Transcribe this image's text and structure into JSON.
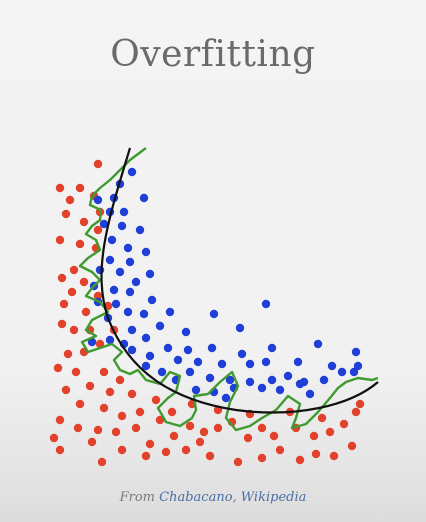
{
  "title": "Overfitting",
  "credit": {
    "prefix": "From ",
    "author": "Chabacano",
    "separator": ", ",
    "source": "Wikipedia"
  },
  "colors": {
    "class_a": "#e2412b",
    "class_b": "#1f3fd6",
    "smooth_boundary": "#111111",
    "overfit_boundary": "#3f9b2f"
  }
}
